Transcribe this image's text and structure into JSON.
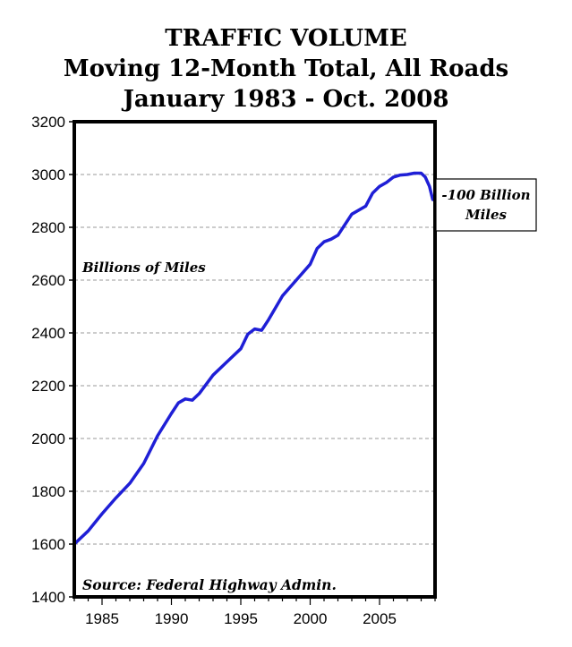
{
  "chart_data": {
    "type": "line",
    "title": "TRAFFIC VOLUME",
    "subtitle_lines": [
      "Moving 12-Month Total, All Roads",
      "January 1983 - Oct. 2008"
    ],
    "ylabel": "Billions of Miles",
    "source": "Source: Federal Highway Admin.",
    "callout": [
      "-100 Billion",
      "Miles"
    ],
    "xlim": [
      1983,
      2009
    ],
    "ylim": [
      1400,
      3200
    ],
    "y_ticks": [
      1400,
      1600,
      1800,
      2000,
      2200,
      2400,
      2600,
      2800,
      3000,
      3200
    ],
    "x_ticks": [
      1985,
      1990,
      1995,
      2000,
      2005
    ],
    "grid": "horizontal-dashed",
    "line_color": "#1f1fd6",
    "series": [
      {
        "x": [
          1983.0,
          1984.0,
          1985.0,
          1986.0,
          1987.0,
          1988.0,
          1989.0,
          1990.0,
          1990.5,
          1991.0,
          1991.5,
          1992.0,
          1993.0,
          1994.0,
          1995.0,
          1995.5,
          1996.0,
          1996.5,
          1997.0,
          1998.0,
          1999.0,
          2000.0,
          2000.5,
          2001.0,
          2001.5,
          2002.0,
          2003.0,
          2004.0,
          2004.5,
          2005.0,
          2005.5,
          2006.0,
          2006.5,
          2007.0,
          2007.5,
          2008.0,
          2008.3,
          2008.6,
          2008.83
        ],
        "y": [
          1600,
          1650,
          1715,
          1775,
          1830,
          1905,
          2010,
          2095,
          2135,
          2150,
          2145,
          2170,
          2240,
          2290,
          2340,
          2395,
          2415,
          2410,
          2450,
          2540,
          2600,
          2660,
          2720,
          2745,
          2755,
          2770,
          2850,
          2880,
          2930,
          2955,
          2970,
          2990,
          2998,
          3000,
          3005,
          3005,
          2990,
          2955,
          2905
        ]
      }
    ]
  }
}
